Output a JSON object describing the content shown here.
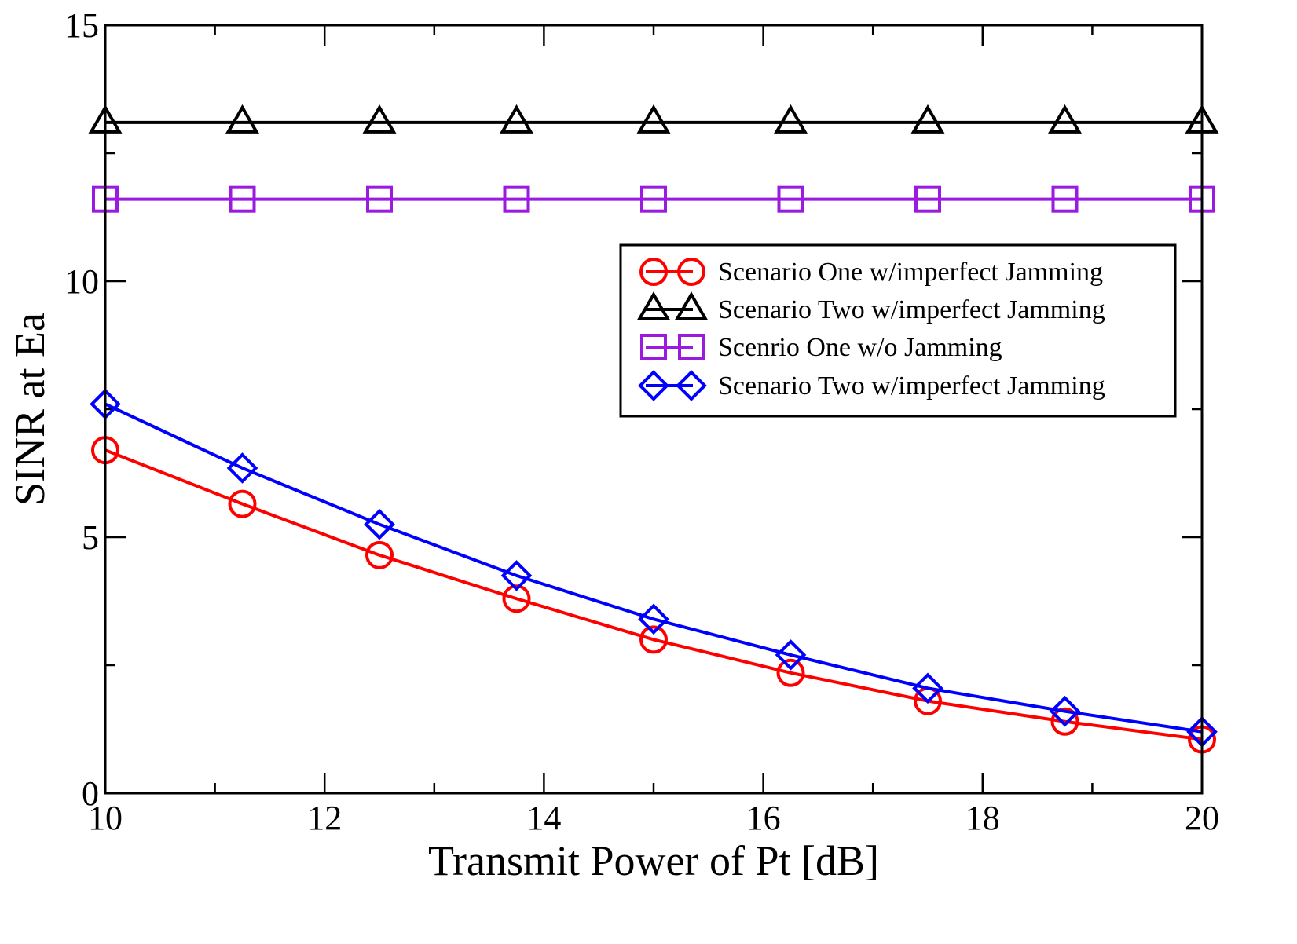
{
  "chart_data": {
    "type": "line",
    "title": "",
    "xlabel": "Transmit Power of Pt [dB]",
    "ylabel": "SINR at Ea",
    "xlim": [
      10,
      20
    ],
    "ylim": [
      0,
      15
    ],
    "xticks": [
      10,
      12,
      14,
      16,
      18,
      20
    ],
    "xtick_labels": [
      "10",
      "12",
      "14",
      "16",
      "18",
      "20"
    ],
    "xminor": [
      11,
      13,
      15,
      17,
      19
    ],
    "yticks": [
      0,
      5,
      10,
      15
    ],
    "ytick_labels": [
      "0",
      "5",
      "10",
      "15"
    ],
    "yminor": [
      2.5,
      7.5,
      12.5
    ],
    "grid": false,
    "legend_position": "center-right",
    "x": [
      10,
      11.25,
      12.5,
      13.75,
      15,
      16.25,
      17.5,
      18.75,
      20
    ],
    "series": [
      {
        "name": "Scenario One w/imperfect Jamming",
        "marker": "circle",
        "color": "#ff0000",
        "values": [
          6.7,
          5.65,
          4.65,
          3.8,
          3.0,
          2.35,
          1.8,
          1.4,
          1.05
        ]
      },
      {
        "name": "Scenario Two w/imperfect Jamming",
        "marker": "triangle",
        "color": "#000000",
        "values": [
          13.1,
          13.1,
          13.1,
          13.1,
          13.1,
          13.1,
          13.1,
          13.1,
          13.1
        ]
      },
      {
        "name": "Scenrio One w/o Jamming",
        "marker": "square",
        "color": "#9a1adf",
        "values": [
          11.6,
          11.6,
          11.6,
          11.6,
          11.6,
          11.6,
          11.6,
          11.6,
          11.6
        ]
      },
      {
        "name": "Scenario Two w/imperfect Jamming",
        "marker": "diamond",
        "color": "#0000ff",
        "values": [
          7.6,
          6.35,
          5.25,
          4.25,
          3.4,
          2.7,
          2.05,
          1.6,
          1.2
        ]
      }
    ]
  }
}
